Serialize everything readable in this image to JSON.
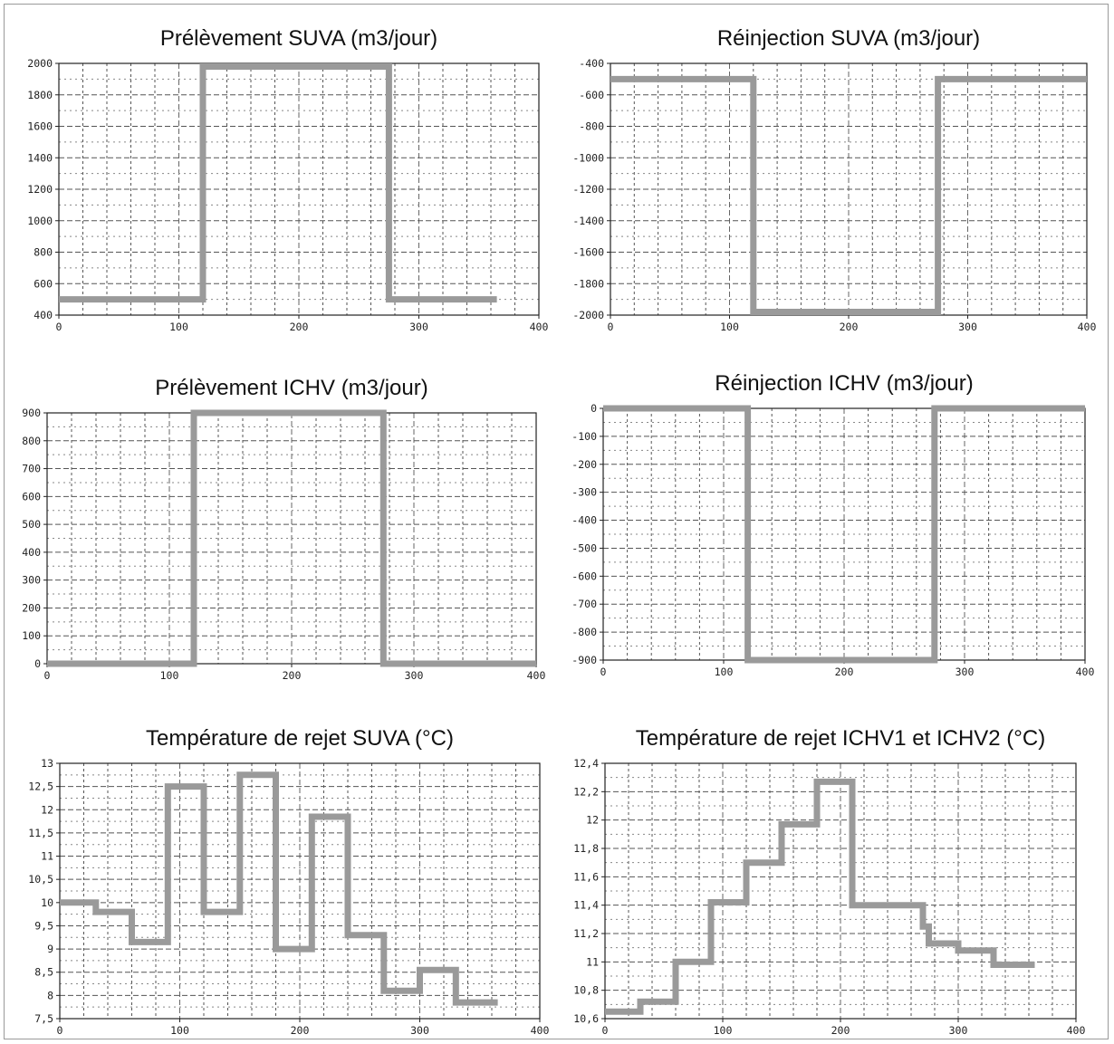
{
  "chart_data": [
    {
      "type": "line",
      "title": "Prélèvement SUVA (m3/jour)",
      "xlim": [
        0,
        400
      ],
      "ylim": [
        400,
        2000
      ],
      "xticks": [
        0,
        100,
        200,
        300,
        400
      ],
      "yticks": [
        400,
        600,
        800,
        1000,
        1200,
        1400,
        1600,
        1800,
        2000
      ],
      "x_minor_step": 20,
      "y_minor_step": 100,
      "grid": true,
      "line_color": "#9a9a9a",
      "x": [
        0,
        120,
        120,
        275,
        275,
        365
      ],
      "y": [
        500,
        500,
        1980,
        1980,
        500,
        500
      ]
    },
    {
      "type": "line",
      "title": "Réinjection SUVA (m3/jour)",
      "xlim": [
        0,
        400
      ],
      "ylim": [
        -2000,
        -400
      ],
      "xticks": [
        0,
        100,
        200,
        300,
        400
      ],
      "yticks": [
        -2000,
        -1800,
        -1600,
        -1400,
        -1200,
        -1000,
        -800,
        -600,
        -400
      ],
      "x_minor_step": 20,
      "y_minor_step": 100,
      "grid": true,
      "line_color": "#9a9a9a",
      "x": [
        0,
        120,
        120,
        275,
        275,
        400
      ],
      "y": [
        -500,
        -500,
        -1980,
        -1980,
        -500,
        -500
      ]
    },
    {
      "type": "line",
      "title": "Prélèvement ICHV (m3/jour)",
      "xlim": [
        0,
        400
      ],
      "ylim": [
        0,
        900
      ],
      "xticks": [
        0,
        100,
        200,
        300,
        400
      ],
      "yticks": [
        0,
        100,
        200,
        300,
        400,
        500,
        600,
        700,
        800,
        900
      ],
      "x_minor_step": 20,
      "y_minor_step": 50,
      "grid": true,
      "line_color": "#9a9a9a",
      "x": [
        0,
        120,
        120,
        275,
        275,
        400
      ],
      "y": [
        0,
        0,
        900,
        900,
        0,
        0
      ]
    },
    {
      "type": "line",
      "title": "Réinjection ICHV (m3/jour)",
      "xlim": [
        0,
        400
      ],
      "ylim": [
        -900,
        0
      ],
      "xticks": [
        0,
        100,
        200,
        300,
        400
      ],
      "yticks": [
        -900,
        -800,
        -700,
        -600,
        -500,
        -400,
        -300,
        -200,
        -100,
        0
      ],
      "x_minor_step": 20,
      "y_minor_step": 50,
      "grid": true,
      "line_color": "#9a9a9a",
      "x": [
        0,
        120,
        120,
        275,
        275,
        400
      ],
      "y": [
        0,
        0,
        -900,
        -900,
        0,
        0
      ]
    },
    {
      "type": "line",
      "title": "Température de rejet SUVA (°C)",
      "xlim": [
        0,
        400
      ],
      "ylim": [
        7.5,
        13
      ],
      "xticks": [
        0,
        100,
        200,
        300,
        400
      ],
      "yticks": [
        7.5,
        8,
        8.5,
        9,
        9.5,
        10,
        10.5,
        11,
        11.5,
        12,
        12.5,
        13
      ],
      "ytick_labels": [
        "7,5",
        "8",
        "8,5",
        "9",
        "9,5",
        "10",
        "10,5",
        "11",
        "11,5",
        "12",
        "12,5",
        "13"
      ],
      "x_minor_step": 20,
      "y_minor_step": 0.25,
      "grid": true,
      "line_color": "#9a9a9a",
      "x": [
        0,
        30,
        30,
        60,
        60,
        90,
        90,
        120,
        120,
        150,
        150,
        180,
        180,
        210,
        210,
        240,
        240,
        270,
        270,
        300,
        300,
        330,
        330,
        365
      ],
      "y": [
        10.0,
        10.0,
        9.8,
        9.8,
        9.15,
        9.15,
        12.5,
        12.5,
        9.8,
        9.8,
        12.75,
        12.75,
        9.0,
        9.0,
        11.85,
        11.85,
        9.3,
        9.3,
        8.1,
        8.1,
        8.55,
        8.55,
        7.85,
        7.85
      ]
    },
    {
      "type": "line",
      "title": "Température de rejet ICHV1 et ICHV2 (°C)",
      "xlim": [
        0,
        400
      ],
      "ylim": [
        10.6,
        12.4
      ],
      "xticks": [
        0,
        100,
        200,
        300,
        400
      ],
      "yticks": [
        10.6,
        10.8,
        11,
        11.2,
        11.4,
        11.6,
        11.8,
        12,
        12.2,
        12.4
      ],
      "ytick_labels": [
        "10,6",
        "10,8",
        "11",
        "11,2",
        "11,4",
        "11,6",
        "11,8",
        "12",
        "12,2",
        "12,4"
      ],
      "x_minor_step": 20,
      "y_minor_step": 0.1,
      "grid": true,
      "line_color": "#9a9a9a",
      "x": [
        0,
        30,
        30,
        60,
        60,
        90,
        90,
        120,
        120,
        150,
        150,
        180,
        180,
        210,
        210,
        270,
        270,
        275,
        275,
        300,
        300,
        330,
        330,
        365
      ],
      "y": [
        10.65,
        10.65,
        10.72,
        10.72,
        11.0,
        11.0,
        11.42,
        11.42,
        11.7,
        11.7,
        11.97,
        11.97,
        12.27,
        12.27,
        11.4,
        11.4,
        11.25,
        11.25,
        11.13,
        11.13,
        11.08,
        11.08,
        10.98,
        10.98
      ]
    }
  ]
}
